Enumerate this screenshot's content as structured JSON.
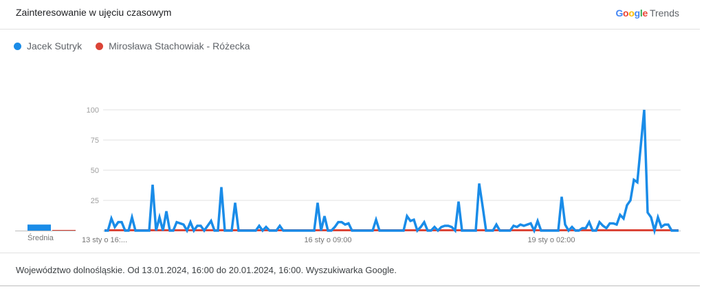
{
  "header": {
    "title": "Zainteresowanie w ujęciu czasowym",
    "logo": "Google Trends",
    "logo_word": "Trends"
  },
  "footer": {
    "text": "Województwo dolnośląskie. Od 13.01.2024, 16:00 do 20.01.2024, 16:00. Wyszukiwarka Google."
  },
  "chart_data": {
    "type": "line",
    "ylim": [
      0,
      100
    ],
    "yticks": [
      "100",
      "75",
      "50",
      "25"
    ],
    "xtick_labels": [
      {
        "index": 0,
        "label": "13 sty o 16:..."
      },
      {
        "index": 65,
        "label": "16 sty o 09:00"
      },
      {
        "index": 130,
        "label": "19 sty o 02:00"
      }
    ],
    "average_label": "Średnia",
    "grid": true,
    "legend_position": "top-left",
    "series": [
      {
        "name": "Jacek Sutryk",
        "color": "#1a8ce8",
        "average": 5,
        "values": [
          0,
          0,
          10,
          3,
          7,
          7,
          0,
          0,
          11,
          0,
          0,
          0,
          0,
          0,
          38,
          0,
          11,
          0,
          16,
          0,
          0,
          7,
          6,
          5,
          0,
          7,
          0,
          4,
          4,
          0,
          4,
          8,
          0,
          0,
          36,
          0,
          0,
          0,
          23,
          0,
          0,
          0,
          0,
          0,
          0,
          4,
          0,
          3,
          0,
          0,
          0,
          4,
          0,
          0,
          0,
          0,
          0,
          0,
          0,
          0,
          0,
          0,
          23,
          0,
          12,
          0,
          0,
          3,
          7,
          7,
          5,
          6,
          0,
          0,
          0,
          0,
          0,
          0,
          0,
          9,
          0,
          0,
          0,
          0,
          0,
          0,
          0,
          0,
          12,
          8,
          9,
          0,
          3,
          7,
          0,
          0,
          3,
          0,
          3,
          4,
          4,
          3,
          0,
          24,
          0,
          0,
          0,
          0,
          0,
          39,
          20,
          0,
          0,
          0,
          5,
          0,
          0,
          0,
          0,
          4,
          3,
          5,
          4,
          5,
          6,
          0,
          8,
          0,
          0,
          0,
          0,
          0,
          0,
          28,
          5,
          0,
          3,
          0,
          0,
          2,
          2,
          7,
          0,
          0,
          7,
          4,
          2,
          6,
          6,
          5,
          13,
          10,
          21,
          25,
          42,
          40,
          70,
          100,
          15,
          11,
          0,
          11,
          3,
          5,
          5,
          0,
          0,
          0
        ]
      },
      {
        "name": "Mirosława Stachowiak - Różecka",
        "color": "#db4437",
        "average": 0,
        "values_constant": 0
      }
    ]
  }
}
